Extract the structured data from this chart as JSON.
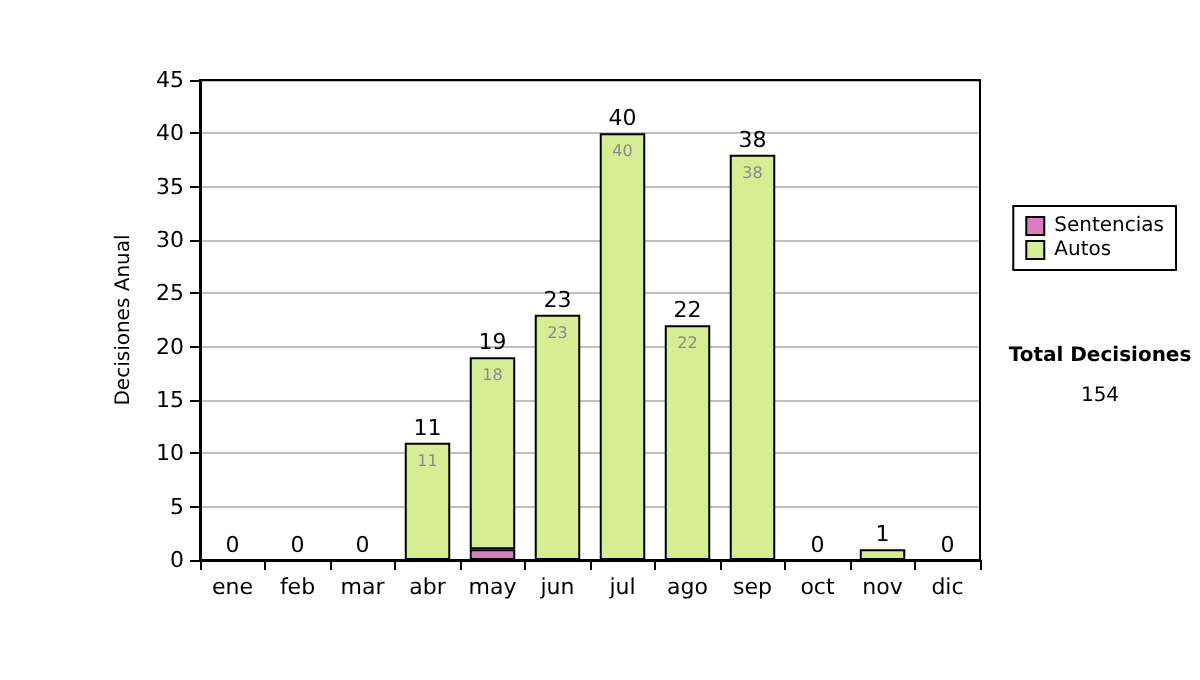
{
  "chart_data": {
    "type": "bar",
    "stacked": true,
    "categories": [
      "ene",
      "feb",
      "mar",
      "abr",
      "may",
      "jun",
      "jul",
      "ago",
      "sep",
      "oct",
      "nov",
      "dic"
    ],
    "series": [
      {
        "name": "Sentencias",
        "color": "#d77fc0",
        "values": [
          0,
          0,
          0,
          0,
          1,
          0,
          0,
          0,
          0,
          0,
          0,
          0
        ],
        "value_labels": [
          null,
          null,
          null,
          null,
          null,
          null,
          null,
          null,
          null,
          null,
          null,
          null
        ]
      },
      {
        "name": "Autos",
        "color": "#d6ec95",
        "values": [
          0,
          0,
          0,
          11,
          18,
          23,
          40,
          22,
          38,
          0,
          1,
          0
        ],
        "value_labels": [
          null,
          null,
          null,
          "11",
          "18",
          "23",
          "40",
          "22",
          "38",
          null,
          null,
          null
        ]
      }
    ],
    "totals": [
      "0",
      "0",
      "0",
      "11",
      "19",
      "23",
      "40",
      "22",
      "38",
      "0",
      "1",
      "0"
    ],
    "ylabel": "Decisiones Anual",
    "ylim": [
      0,
      45
    ],
    "yticks": [
      0,
      5,
      10,
      15,
      20,
      25,
      30,
      35,
      40,
      45
    ],
    "grid": "y",
    "legend": "right",
    "annotations": [
      "Total Decisiones",
      "154"
    ]
  }
}
